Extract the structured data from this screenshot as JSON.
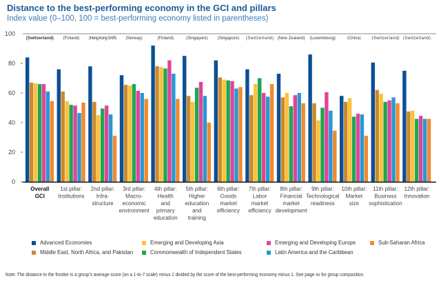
{
  "chart_data": {
    "type": "bar",
    "title": "Distance to the best-performing economy in the GCI and pillars",
    "subtitle": "Index value (0–100, 100 = best-performing economy listed in parentheses)",
    "xlabel": "",
    "ylabel": "",
    "ylim": [
      0,
      100
    ],
    "yticks": [
      0,
      20,
      40,
      60,
      80,
      100
    ],
    "grid": false,
    "legend_position": "bottom",
    "categories": [
      {
        "lines": [
          "Overall",
          "GCI"
        ],
        "bold": true,
        "best": "(Switzerland)"
      },
      {
        "lines": [
          "1st pillar:",
          "Institutions"
        ],
        "bold": false,
        "best": "(Finland)"
      },
      {
        "lines": [
          "2nd pillar:",
          "Infra-",
          "structure"
        ],
        "bold": false,
        "best": "(Hong Kong SAR)"
      },
      {
        "lines": [
          "3rd pillar:",
          "Macro-",
          "economic",
          "environment"
        ],
        "bold": false,
        "best": "(Norway)"
      },
      {
        "lines": [
          "4th pillar:",
          "Health",
          "and",
          "primary",
          "education"
        ],
        "bold": false,
        "best": "(Finland)"
      },
      {
        "lines": [
          "5th pillar:",
          "Higher",
          "education",
          "and",
          "training"
        ],
        "bold": false,
        "best": "(Singapore)"
      },
      {
        "lines": [
          "6th pillar:",
          "Goods",
          "market",
          "efficiency"
        ],
        "bold": false,
        "best": "(Singapore)"
      },
      {
        "lines": [
          "7th pillar:",
          "Labor",
          "market",
          "efficiency"
        ],
        "bold": false,
        "best": "(Switzerland)"
      },
      {
        "lines": [
          "8th pillar:",
          "Financial",
          "market",
          "development"
        ],
        "bold": false,
        "best": "(New Zealand)"
      },
      {
        "lines": [
          "9th pillar:",
          "Technological",
          "readiness"
        ],
        "bold": false,
        "best": "(Luxembourg)"
      },
      {
        "lines": [
          "10th pillar:",
          "Market",
          "size"
        ],
        "bold": false,
        "best": "(China)"
      },
      {
        "lines": [
          "11th pillar:",
          "Business",
          "sophistication"
        ],
        "bold": false,
        "best": "(Switzerland)"
      },
      {
        "lines": [
          "12th pillar:",
          "Innovation"
        ],
        "bold": false,
        "best": "(Switzerland)"
      }
    ],
    "series": [
      {
        "name": "Advanced Economies",
        "color": "#0d4f95",
        "values": [
          84,
          76,
          78,
          72,
          92,
          85,
          82,
          76,
          73,
          86,
          58,
          80.5,
          75
        ]
      },
      {
        "name": "Middle East, North Africa, and Pakistan",
        "color": "#c98a2c",
        "values": [
          67,
          61,
          54,
          65.5,
          78,
          58,
          70.5,
          58.5,
          57,
          53,
          54,
          62,
          47.5
        ]
      },
      {
        "name": "Emerging and Developing Asia",
        "color": "#fbc23b",
        "values": [
          66.5,
          54.5,
          45,
          65,
          77.5,
          54,
          69,
          66,
          60,
          41.5,
          56.5,
          59.5,
          48
        ]
      },
      {
        "name": "Commonwealth of Independent States",
        "color": "#1fa653",
        "values": [
          66,
          52,
          49.5,
          66,
          76.5,
          63.5,
          68.5,
          70,
          51,
          50,
          44,
          54,
          42.5
        ]
      },
      {
        "name": "Emerging and Developing Europe",
        "color": "#e0449a",
        "values": [
          66,
          51.5,
          51.5,
          61.5,
          82,
          67.5,
          68,
          60,
          58.5,
          60.5,
          46,
          55,
          44.5
        ]
      },
      {
        "name": "Latin America and the Caribbean",
        "color": "#2898d4",
        "values": [
          61,
          46.5,
          45.5,
          60,
          73,
          58,
          63,
          57.5,
          60,
          48,
          45.5,
          57,
          42.5
        ]
      },
      {
        "name": "Sub-Saharan Africa",
        "color": "#f18a2e",
        "values": [
          54.5,
          53.5,
          31,
          56,
          56,
          40,
          64,
          66,
          53,
          34.5,
          31,
          53,
          42.5
        ]
      }
    ],
    "legend": {
      "rows": [
        [
          "Advanced Economies",
          "Emerging and Developing Asia",
          "Emerging and Developing Europe",
          "Sub-Saharan Africa"
        ],
        [
          "Middle East, North Africa, and Pakistan",
          "Commonwealth of Independent States",
          "Latin America and the Caribbean"
        ]
      ]
    }
  },
  "note": "Note: The distance to the frontier is a group’s average score (on a 1-to-7 scale) minus 1 divided by the score of the best-performing economy minus 1. See page xv for group composition."
}
